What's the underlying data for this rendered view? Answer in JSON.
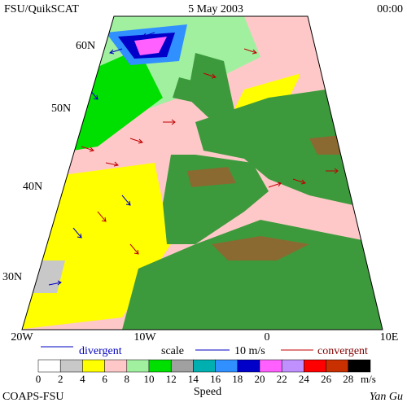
{
  "header": {
    "left": "FSU/QuikSCAT",
    "center": "5 May 2003",
    "right": "00:00"
  },
  "lat_labels": [
    "60N",
    "50N",
    "40N",
    "30N"
  ],
  "lon_labels": [
    "20W",
    "10W",
    "0",
    "10E"
  ],
  "legend": {
    "divergent": "divergent",
    "scale": "scale",
    "scale_value": "10 m/s",
    "convergent": "convergent"
  },
  "colorbar": {
    "title": "Speed",
    "unit": "m/s",
    "items": [
      {
        "label": "0",
        "color": "#ffffff"
      },
      {
        "label": "2",
        "color": "#c8c8c8"
      },
      {
        "label": "4",
        "color": "#ffff00"
      },
      {
        "label": "6",
        "color": "#ffc8c8"
      },
      {
        "label": "8",
        "color": "#a0f0a0"
      },
      {
        "label": "10",
        "color": "#00e000"
      },
      {
        "label": "12",
        "color": "#a0a0a0"
      },
      {
        "label": "14",
        "color": "#00b0b0"
      },
      {
        "label": "16",
        "color": "#3090ff"
      },
      {
        "label": "18",
        "color": "#0000c8"
      },
      {
        "label": "20",
        "color": "#ff60ff"
      },
      {
        "label": "22",
        "color": "#c090ff"
      },
      {
        "label": "24",
        "color": "#ff0000"
      },
      {
        "label": "26",
        "color": "#c83000"
      },
      {
        "label": "28",
        "color": "#000000"
      }
    ]
  },
  "footer": {
    "left": "COAPS-FSU",
    "right": "Yan Gu"
  }
}
